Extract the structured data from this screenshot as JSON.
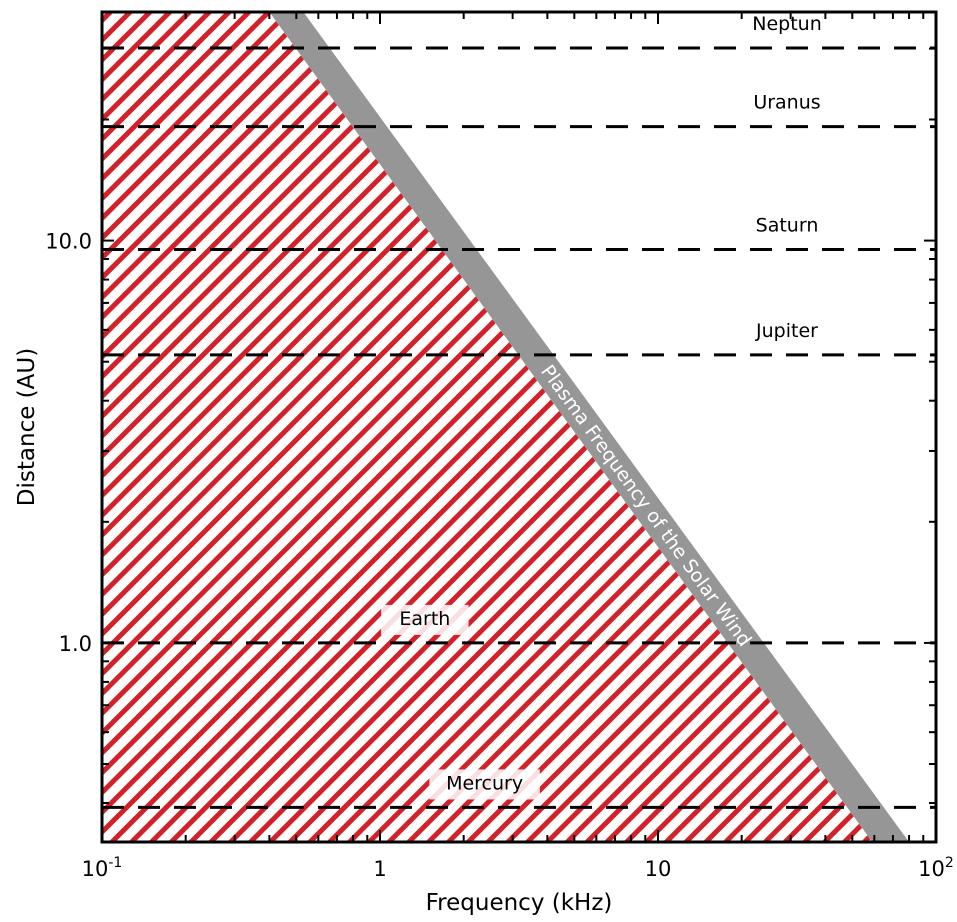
{
  "chart_data": {
    "type": "line",
    "xlabel": "Frequency (kHz)",
    "ylabel": "Distance (AU)",
    "xscale": "log",
    "yscale": "log",
    "xlim": [
      0.1,
      100
    ],
    "ylim": [
      0.32,
      37
    ],
    "x_ticks": [
      {
        "value": 0.1,
        "base": "10",
        "exp": "-1"
      },
      {
        "value": 1,
        "base": "1",
        "exp": ""
      },
      {
        "value": 10,
        "base": "10",
        "exp": ""
      },
      {
        "value": 100,
        "base": "10",
        "exp": "2"
      }
    ],
    "y_ticks": [
      {
        "value": 1,
        "label": "1.0"
      },
      {
        "value": 10,
        "label": "10.0"
      }
    ],
    "planets": [
      {
        "name": "Mercury",
        "distance": 0.39
      },
      {
        "name": "Earth",
        "distance": 1.0
      },
      {
        "name": "Jupiter",
        "distance": 5.2
      },
      {
        "name": "Saturn",
        "distance": 9.5
      },
      {
        "name": "Uranus",
        "distance": 19.2
      },
      {
        "name": "Neptun",
        "distance": 30.1
      }
    ],
    "band": {
      "label": "Plasma Frequency of the Solar Wind",
      "inner_edge": [
        {
          "x": 0.4,
          "y": 37
        },
        {
          "x": 59,
          "y": 0.32
        }
      ],
      "outer_edge": [
        {
          "x": 0.53,
          "y": 37
        },
        {
          "x": 80,
          "y": 0.32
        }
      ],
      "color": "#969696"
    },
    "hatched_region_color": "#d3212a",
    "planet_line_color": "#000000"
  }
}
